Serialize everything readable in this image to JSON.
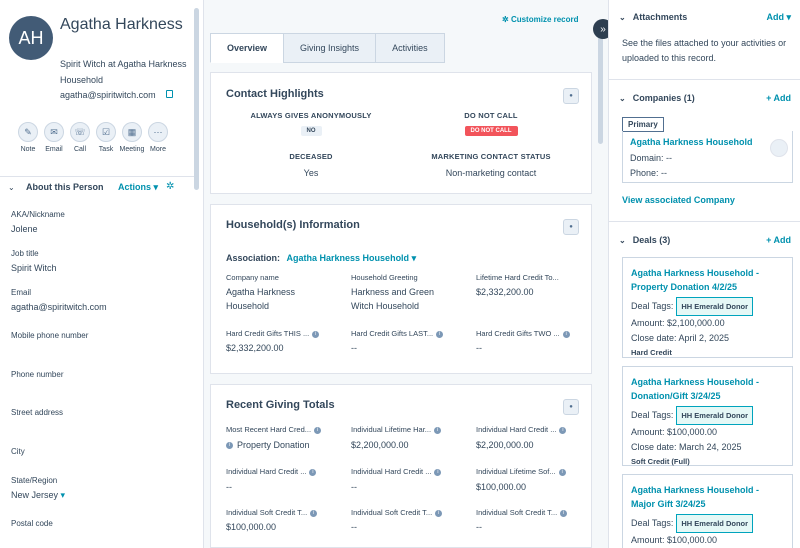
{
  "contact": {
    "initials": "AH",
    "name": "Agatha Harkness",
    "subtitle": "Spirit Witch at Agatha Harkness Household",
    "email": "agatha@spiritwitch.com"
  },
  "quick_actions": [
    {
      "label": "Note",
      "icon": "note-icon",
      "glyph": "✎"
    },
    {
      "label": "Email",
      "icon": "email-icon",
      "glyph": "✉"
    },
    {
      "label": "Call",
      "icon": "call-icon",
      "glyph": "☏"
    },
    {
      "label": "Task",
      "icon": "task-icon",
      "glyph": "☑"
    },
    {
      "label": "Meeting",
      "icon": "meeting-icon",
      "glyph": "▦"
    },
    {
      "label": "More",
      "icon": "more-icon",
      "glyph": "⋯"
    }
  ],
  "about": {
    "title": "About this Person",
    "actions_label": "Actions",
    "fields": [
      {
        "label": "AKA/Nickname",
        "value": "Jolene"
      },
      {
        "label": "Job title",
        "value": "Spirit Witch"
      },
      {
        "label": "Email",
        "value": "agatha@spiritwitch.com"
      },
      {
        "label": "Mobile phone number",
        "value": ""
      },
      {
        "label": "Phone number",
        "value": ""
      },
      {
        "label": "Street address",
        "value": ""
      },
      {
        "label": "City",
        "value": ""
      },
      {
        "label": "State/Region",
        "value": "New Jersey"
      },
      {
        "label": "Postal code",
        "value": ""
      }
    ]
  },
  "customize_label": "Customize record",
  "tabs": [
    "Overview",
    "Giving Insights",
    "Activities"
  ],
  "highlights": {
    "title": "Contact Highlights",
    "anon_label": "ALWAYS GIVES ANONYMOUSLY",
    "anon_value": "NO",
    "dnc_label": "DO NOT CALL",
    "dnc_value": "DO NOT CALL",
    "deceased_label": "DECEASED",
    "deceased_value": "Yes",
    "mkt_label": "MARKETING CONTACT STATUS",
    "mkt_value": "Non-marketing contact"
  },
  "household": {
    "title": "Household(s) Information",
    "assoc_label": "Association:",
    "assoc_value": "Agatha Harkness Household",
    "fields": [
      {
        "label": "Company name",
        "value": "Agatha Harkness Household",
        "info": false
      },
      {
        "label": "Household Greeting",
        "value": "Harkness and Green Witch Household",
        "info": false
      },
      {
        "label": "Lifetime Hard Credit To...",
        "value": "$2,332,200.00",
        "info": false
      },
      {
        "label": "Hard Credit Gifts THIS ...",
        "value": "$2,332,200.00",
        "info": true
      },
      {
        "label": "Hard Credit Gifts LAST...",
        "value": "--",
        "info": true
      },
      {
        "label": "Hard Credit Gifts TWO ...",
        "value": "--",
        "info": true
      }
    ]
  },
  "giving": {
    "title": "Recent Giving Totals",
    "fields": [
      {
        "label": "Most Recent Hard Cred...",
        "value": "Property Donation",
        "info": true
      },
      {
        "label": "Individual Lifetime Har...",
        "value": "$2,200,000.00",
        "info": true
      },
      {
        "label": "Individual Hard Credit ...",
        "value": "$2,200,000.00",
        "info": true
      },
      {
        "label": "Individual Hard Credit ...",
        "value": "--",
        "info": true
      },
      {
        "label": "Individual Hard Credit ...",
        "value": "--",
        "info": true
      },
      {
        "label": "Individual Lifetime Sof...",
        "value": "$100,000.00",
        "info": true
      },
      {
        "label": "Individual Soft Credit T...",
        "value": "$100,000.00",
        "info": true
      },
      {
        "label": "Individual Soft Credit T...",
        "value": "--",
        "info": true
      },
      {
        "label": "Individual Soft Credit T...",
        "value": "--",
        "info": true
      }
    ]
  },
  "attachments": {
    "title": "Attachments",
    "add_label": "Add",
    "text": "See the files attached to your activities or uploaded to this record."
  },
  "companies": {
    "title": "Companies (1)",
    "add_label": "+ Add",
    "primary_label": "Primary",
    "name": "Agatha Harkness Household",
    "domain": "Domain: --",
    "phone": "Phone: --",
    "view_label": "View associated Company"
  },
  "deals": {
    "title": "Deals (3)",
    "add_label": "+ Add",
    "items": [
      {
        "title": "Agatha Harkness Household - Property Donation 4/2/25",
        "tag_label": "Deal Tags:",
        "tag": "HH Emerald Donor",
        "amount": "Amount: $2,100,000.00",
        "close": "Close date: April 2, 2025",
        "kind": "Hard Credit"
      },
      {
        "title": "Agatha Harkness Household - Donation/Gift 3/24/25",
        "tag_label": "Deal Tags:",
        "tag": "HH Emerald Donor",
        "amount": "Amount: $100,000.00",
        "close": "Close date: March 24, 2025",
        "kind": "Soft Credit (Full)"
      },
      {
        "title": "Agatha Harkness Household - Major Gift 3/24/25",
        "tag_label": "Deal Tags:",
        "tag": "HH Emerald Donor",
        "amount": "Amount: $100,000.00",
        "close": "",
        "kind": ""
      }
    ]
  }
}
